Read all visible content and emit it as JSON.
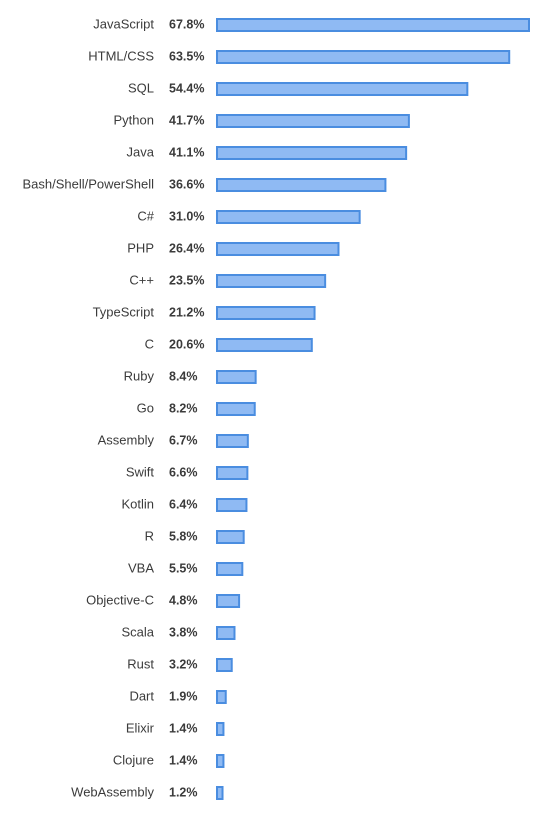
{
  "chart_data": {
    "type": "bar",
    "orientation": "horizontal",
    "unit": "%",
    "categories": [
      "JavaScript",
      "HTML/CSS",
      "SQL",
      "Python",
      "Java",
      "Bash/Shell/PowerShell",
      "C#",
      "PHP",
      "C++",
      "TypeScript",
      "C",
      "Ruby",
      "Go",
      "Assembly",
      "Swift",
      "Kotlin",
      "R",
      "VBA",
      "Objective-C",
      "Scala",
      "Rust",
      "Dart",
      "Elixir",
      "Clojure",
      "WebAssembly"
    ],
    "values": [
      67.8,
      63.5,
      54.4,
      41.7,
      41.1,
      36.6,
      31.0,
      26.4,
      23.5,
      21.2,
      20.6,
      8.4,
      8.2,
      6.7,
      6.6,
      6.4,
      5.8,
      5.5,
      4.8,
      3.8,
      3.2,
      1.9,
      1.4,
      1.4,
      1.2
    ],
    "value_labels": [
      "67.8%",
      "63.5%",
      "54.4%",
      "41.7%",
      "41.1%",
      "36.6%",
      "31.0%",
      "26.4%",
      "23.5%",
      "21.2%",
      "20.6%",
      "8.4%",
      "8.2%",
      "6.7%",
      "6.6%",
      "6.4%",
      "5.8%",
      "5.5%",
      "4.8%",
      "3.8%",
      "3.2%",
      "1.9%",
      "1.4%",
      "1.4%",
      "1.2%"
    ],
    "xlim": [
      0,
      67.8
    ],
    "grid": false,
    "legend": "none",
    "colors": {
      "bar_fill": "#8fbaf3",
      "bar_stroke": "#4a8de0",
      "text": "#3b3b3b"
    }
  }
}
